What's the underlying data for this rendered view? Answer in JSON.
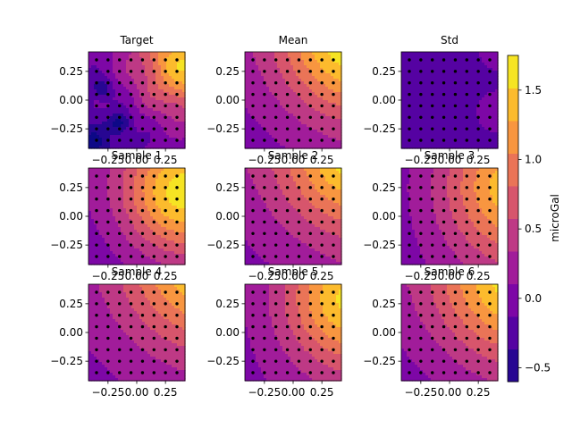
{
  "figure": {
    "colormap": "plasma",
    "colorbar": {
      "label": "microGal",
      "range": [
        -0.6,
        1.75
      ],
      "ticks": [
        1.5,
        1.0,
        0.5,
        0.0,
        -0.5
      ],
      "tick_labels": [
        "1.5",
        "1.0",
        "0.5",
        "0.0",
        "−0.5"
      ]
    },
    "colors": {
      "marker": "#000000",
      "axis": "#000000",
      "background": "#ffffff",
      "colormap_stops": [
        "#0d0887",
        "#46039f",
        "#7201a8",
        "#9c179e",
        "#bd3786",
        "#d8576b",
        "#ed7953",
        "#fb9f3a",
        "#fdca26",
        "#f0f921"
      ]
    }
  },
  "chart_data": [
    {
      "type": "heatmap",
      "title": "Target",
      "field": "target",
      "xlim": [
        -0.42,
        0.42
      ],
      "ylim": [
        -0.42,
        0.42
      ],
      "xticks": [
        "−0.25",
        "0.00",
        "0.25"
      ],
      "yticks": [
        "0.25",
        "0.00",
        "−0.25"
      ],
      "markers": "8x8 observation grid, spacing 0.1"
    },
    {
      "type": "heatmap",
      "title": "Mean",
      "field": "mean",
      "xlim": [
        -0.42,
        0.42
      ],
      "ylim": [
        -0.42,
        0.42
      ],
      "xticks": [
        "−0.25",
        "0.00",
        "0.25"
      ],
      "yticks": [
        "0.25",
        "0.00",
        "−0.25"
      ],
      "markers": "8x8 observation grid, spacing 0.1"
    },
    {
      "type": "heatmap",
      "title": "Std",
      "field": "std",
      "xlim": [
        -0.42,
        0.42
      ],
      "ylim": [
        -0.42,
        0.42
      ],
      "xticks": [
        "−0.25",
        "0.00",
        "0.25"
      ],
      "yticks": [
        "0.25",
        "0.00",
        "−0.25"
      ],
      "markers": "8x8 observation grid, spacing 0.1"
    },
    {
      "type": "heatmap",
      "title": "Sample 1",
      "field": "sample1",
      "xlim": [
        -0.42,
        0.42
      ],
      "ylim": [
        -0.42,
        0.42
      ],
      "xticks": [
        "−0.25",
        "0.00",
        "0.25"
      ],
      "yticks": [
        "0.25",
        "0.00",
        "−0.25"
      ],
      "markers": "8x8 observation grid, spacing 0.1"
    },
    {
      "type": "heatmap",
      "title": "Sample 2",
      "field": "sample2",
      "xlim": [
        -0.42,
        0.42
      ],
      "ylim": [
        -0.42,
        0.42
      ],
      "xticks": [
        "−0.25",
        "0.00",
        "0.25"
      ],
      "yticks": [
        "0.25",
        "0.00",
        "−0.25"
      ],
      "markers": "8x8 observation grid, spacing 0.1"
    },
    {
      "type": "heatmap",
      "title": "Sample 3",
      "field": "sample3",
      "xlim": [
        -0.42,
        0.42
      ],
      "ylim": [
        -0.42,
        0.42
      ],
      "xticks": [
        "−0.25",
        "0.00",
        "0.25"
      ],
      "yticks": [
        "0.25",
        "0.00",
        "−0.25"
      ],
      "markers": "8x8 observation grid, spacing 0.1"
    },
    {
      "type": "heatmap",
      "title": "Sample 4",
      "field": "sample4",
      "xlim": [
        -0.42,
        0.42
      ],
      "ylim": [
        -0.42,
        0.42
      ],
      "xticks": [
        "−0.25",
        "0.00",
        "0.25"
      ],
      "yticks": [
        "0.25",
        "0.00",
        "−0.25"
      ],
      "markers": "8x8 observation grid, spacing 0.1"
    },
    {
      "type": "heatmap",
      "title": "Sample 5",
      "field": "sample5",
      "xlim": [
        -0.42,
        0.42
      ],
      "ylim": [
        -0.42,
        0.42
      ],
      "xticks": [
        "−0.25",
        "0.00",
        "0.25"
      ],
      "yticks": [
        "0.25",
        "0.00",
        "−0.25"
      ],
      "markers": "8x8 observation grid, spacing 0.1"
    },
    {
      "type": "heatmap",
      "title": "Sample 6",
      "field": "sample6",
      "xlim": [
        -0.42,
        0.42
      ],
      "ylim": [
        -0.42,
        0.42
      ],
      "xticks": [
        "−0.25",
        "0.00",
        "0.25"
      ],
      "yticks": [
        "0.25",
        "0.00",
        "−0.25"
      ],
      "markers": "8x8 observation grid, spacing 0.1"
    }
  ]
}
